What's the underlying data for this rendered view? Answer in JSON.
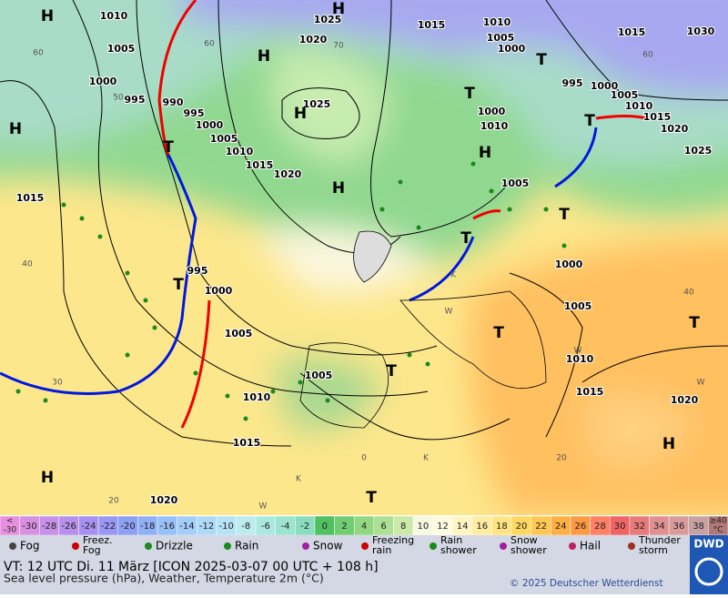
{
  "map": {
    "pressure_labels": [
      "1010",
      "1005",
      "1000",
      "995",
      "990",
      "995",
      "1000",
      "1005",
      "1010",
      "1015",
      "1020",
      "1025",
      "1020",
      "1025",
      "1015",
      "1010",
      "1005",
      "1000",
      "995",
      "1000",
      "1005",
      "1010",
      "1015",
      "1020",
      "1025",
      "1030",
      "1015",
      "1000",
      "1010",
      "1005",
      "1015",
      "995",
      "1000",
      "1005",
      "1010",
      "1015",
      "1020",
      "1000",
      "1005",
      "1010",
      "1015",
      "1020",
      "1005"
    ],
    "grid_labels": [
      "60",
      "50",
      "40",
      "30",
      "20",
      "60",
      "70",
      "60",
      "40",
      "20",
      "0"
    ],
    "centers": [
      "H",
      "H",
      "H",
      "H",
      "H",
      "H",
      "H",
      "H",
      "H",
      "T",
      "T",
      "T",
      "T",
      "T",
      "T",
      "T",
      "T",
      "T",
      "T",
      "T"
    ],
    "small_labels": [
      "W",
      "K",
      "K",
      "W",
      "W",
      "W",
      "K"
    ]
  },
  "legend": {
    "temperature": [
      {
        "lines": [
          "<",
          "-30"
        ],
        "color": "#e890e0"
      },
      {
        "lines": [
          "-30"
        ],
        "color": "#d890e0"
      },
      {
        "lines": [
          "-28"
        ],
        "color": "#c890e8"
      },
      {
        "lines": [
          "-26"
        ],
        "color": "#b890ec"
      },
      {
        "lines": [
          "-24"
        ],
        "color": "#a890f0"
      },
      {
        "lines": [
          "-22"
        ],
        "color": "#9898f4"
      },
      {
        "lines": [
          "-20"
        ],
        "color": "#8ca0f4"
      },
      {
        "lines": [
          "-18"
        ],
        "color": "#90b0f6"
      },
      {
        "lines": [
          "-16"
        ],
        "color": "#98c0f8"
      },
      {
        "lines": [
          "-14"
        ],
        "color": "#a4cefa"
      },
      {
        "lines": [
          "-12"
        ],
        "color": "#aedaf8"
      },
      {
        "lines": [
          "-10"
        ],
        "color": "#b6e4f4"
      },
      {
        "lines": [
          "-8"
        ],
        "color": "#bcecee"
      },
      {
        "lines": [
          "-6"
        ],
        "color": "#aae8e0"
      },
      {
        "lines": [
          "-4"
        ],
        "color": "#9ce4d0"
      },
      {
        "lines": [
          "-2"
        ],
        "color": "#8cdcc0"
      },
      {
        "lines": [
          "0"
        ],
        "color": "#50c060"
      },
      {
        "lines": [
          "2"
        ],
        "color": "#72cc72"
      },
      {
        "lines": [
          "4"
        ],
        "color": "#92d882"
      },
      {
        "lines": [
          "6"
        ],
        "color": "#ace094"
      },
      {
        "lines": [
          "8"
        ],
        "color": "#caeaaa"
      },
      {
        "lines": [
          "10"
        ],
        "color": "#f6f8e2"
      },
      {
        "lines": [
          "12"
        ],
        "color": "#fffbe0"
      },
      {
        "lines": [
          "14"
        ],
        "color": "#fff4c2"
      },
      {
        "lines": [
          "16"
        ],
        "color": "#ffeca2"
      },
      {
        "lines": [
          "18"
        ],
        "color": "#ffe482"
      },
      {
        "lines": [
          "20"
        ],
        "color": "#ffd862"
      },
      {
        "lines": [
          "22"
        ],
        "color": "#ffc852"
      },
      {
        "lines": [
          "24"
        ],
        "color": "#ffb042"
      },
      {
        "lines": [
          "26"
        ],
        "color": "#ff9842"
      },
      {
        "lines": [
          "28"
        ],
        "color": "#ff8062"
      },
      {
        "lines": [
          "30"
        ],
        "color": "#f06464"
      },
      {
        "lines": [
          "32"
        ],
        "color": "#e87a7a"
      },
      {
        "lines": [
          "34"
        ],
        "color": "#e09090"
      },
      {
        "lines": [
          "36"
        ],
        "color": "#d89a9a"
      },
      {
        "lines": [
          "38"
        ],
        "color": "#c8a2a2"
      },
      {
        "lines": [
          "≥40",
          "°C"
        ],
        "color": "#b07878"
      }
    ],
    "weather": [
      [
        "Fog"
      ],
      [
        "Freez.",
        "Fog"
      ],
      [
        "Drizzle"
      ],
      [
        "Rain"
      ],
      [
        "Snow"
      ],
      [
        "Freezing",
        "rain"
      ],
      [
        "Rain",
        "shower"
      ],
      [
        "Snow",
        "shower"
      ],
      [
        "Hail"
      ],
      [
        "Thunder",
        "storm"
      ]
    ]
  },
  "footer": {
    "line1": "VT: 12 UTC Di.  11 März [ICON 2025-03-07  00 UTC + 108 h]",
    "line2": "Sea level pressure (hPa), Weather, Temperature 2m (°C)",
    "copyright": "© 2025 Deutscher Wetterdienst",
    "logo": "DWD"
  }
}
